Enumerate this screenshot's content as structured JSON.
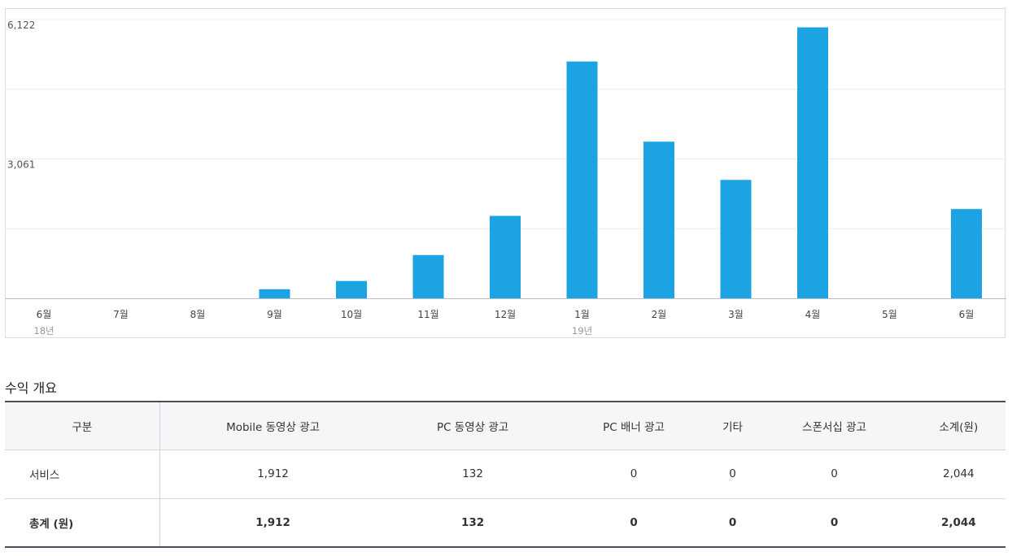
{
  "chart_data": {
    "type": "bar",
    "categories": [
      "6월",
      "7월",
      "8월",
      "9월",
      "10월",
      "11월",
      "12월",
      "1월",
      "2월",
      "3월",
      "4월",
      "5월",
      "6월"
    ],
    "year_labels": [
      "18년",
      "",
      "",
      "",
      "",
      "",
      "",
      "19년",
      "",
      "",
      "",
      "",
      ""
    ],
    "values": [
      0,
      0,
      0,
      200,
      380,
      950,
      1810,
      5200,
      3440,
      2600,
      5950,
      0,
      1960
    ],
    "y_ticks": [
      {
        "value": 6122,
        "label": "6,122"
      },
      {
        "value": 3061,
        "label": "3,061"
      }
    ],
    "ylim": [
      0,
      6122
    ],
    "title": "",
    "xlabel": "",
    "ylabel": "",
    "grid": true,
    "bar_color": "#1ba3e3"
  },
  "summary": {
    "title": "수익 개요",
    "headers": [
      "구분",
      "Mobile 동영상 광고",
      "PC 동영상 광고",
      "PC 배너 광고",
      "기타",
      "스폰서십 광고",
      "소계(원)"
    ],
    "rows": [
      {
        "label": "서비스",
        "cells": [
          "1,912",
          "132",
          "0",
          "0",
          "0",
          "2,044"
        ]
      },
      {
        "label": "총계 (원)",
        "cells": [
          "1,912",
          "132",
          "0",
          "0",
          "0",
          "2,044"
        ]
      }
    ]
  }
}
